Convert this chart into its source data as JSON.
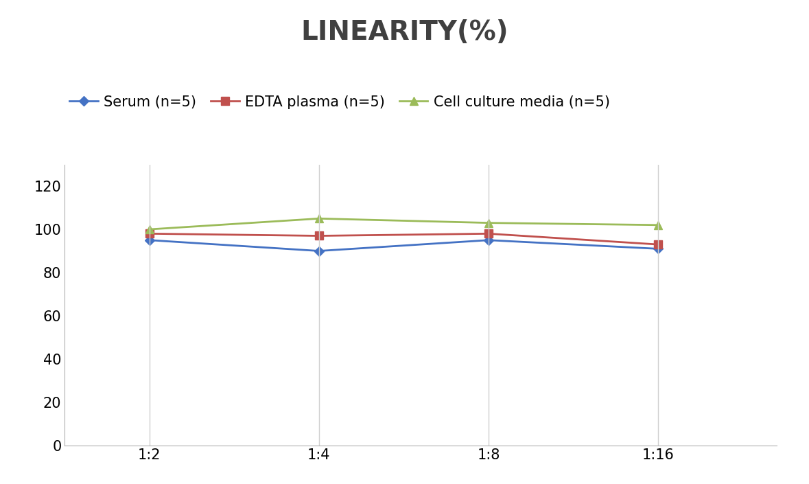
{
  "title": "LINEARITY(%)",
  "x_labels": [
    "1:2",
    "1:4",
    "1:8",
    "1:16"
  ],
  "x_positions": [
    1,
    2,
    3,
    4
  ],
  "series": [
    {
      "label": "Serum (n=5)",
      "values": [
        95,
        90,
        95,
        91
      ],
      "color": "#4472C4",
      "marker": "D",
      "marker_size": 7
    },
    {
      "label": "EDTA plasma (n=5)",
      "values": [
        98,
        97,
        98,
        93
      ],
      "color": "#C0504D",
      "marker": "s",
      "marker_size": 8
    },
    {
      "label": "Cell culture media (n=5)",
      "values": [
        100,
        105,
        103,
        102
      ],
      "color": "#9BBB59",
      "marker": "^",
      "marker_size": 8
    }
  ],
  "ylim": [
    0,
    130
  ],
  "yticks": [
    0,
    20,
    40,
    60,
    80,
    100,
    120
  ],
  "title_fontsize": 28,
  "legend_fontsize": 15,
  "tick_fontsize": 15,
  "background_color": "#ffffff",
  "grid_color": "#d0d0d0",
  "line_width": 2.0
}
